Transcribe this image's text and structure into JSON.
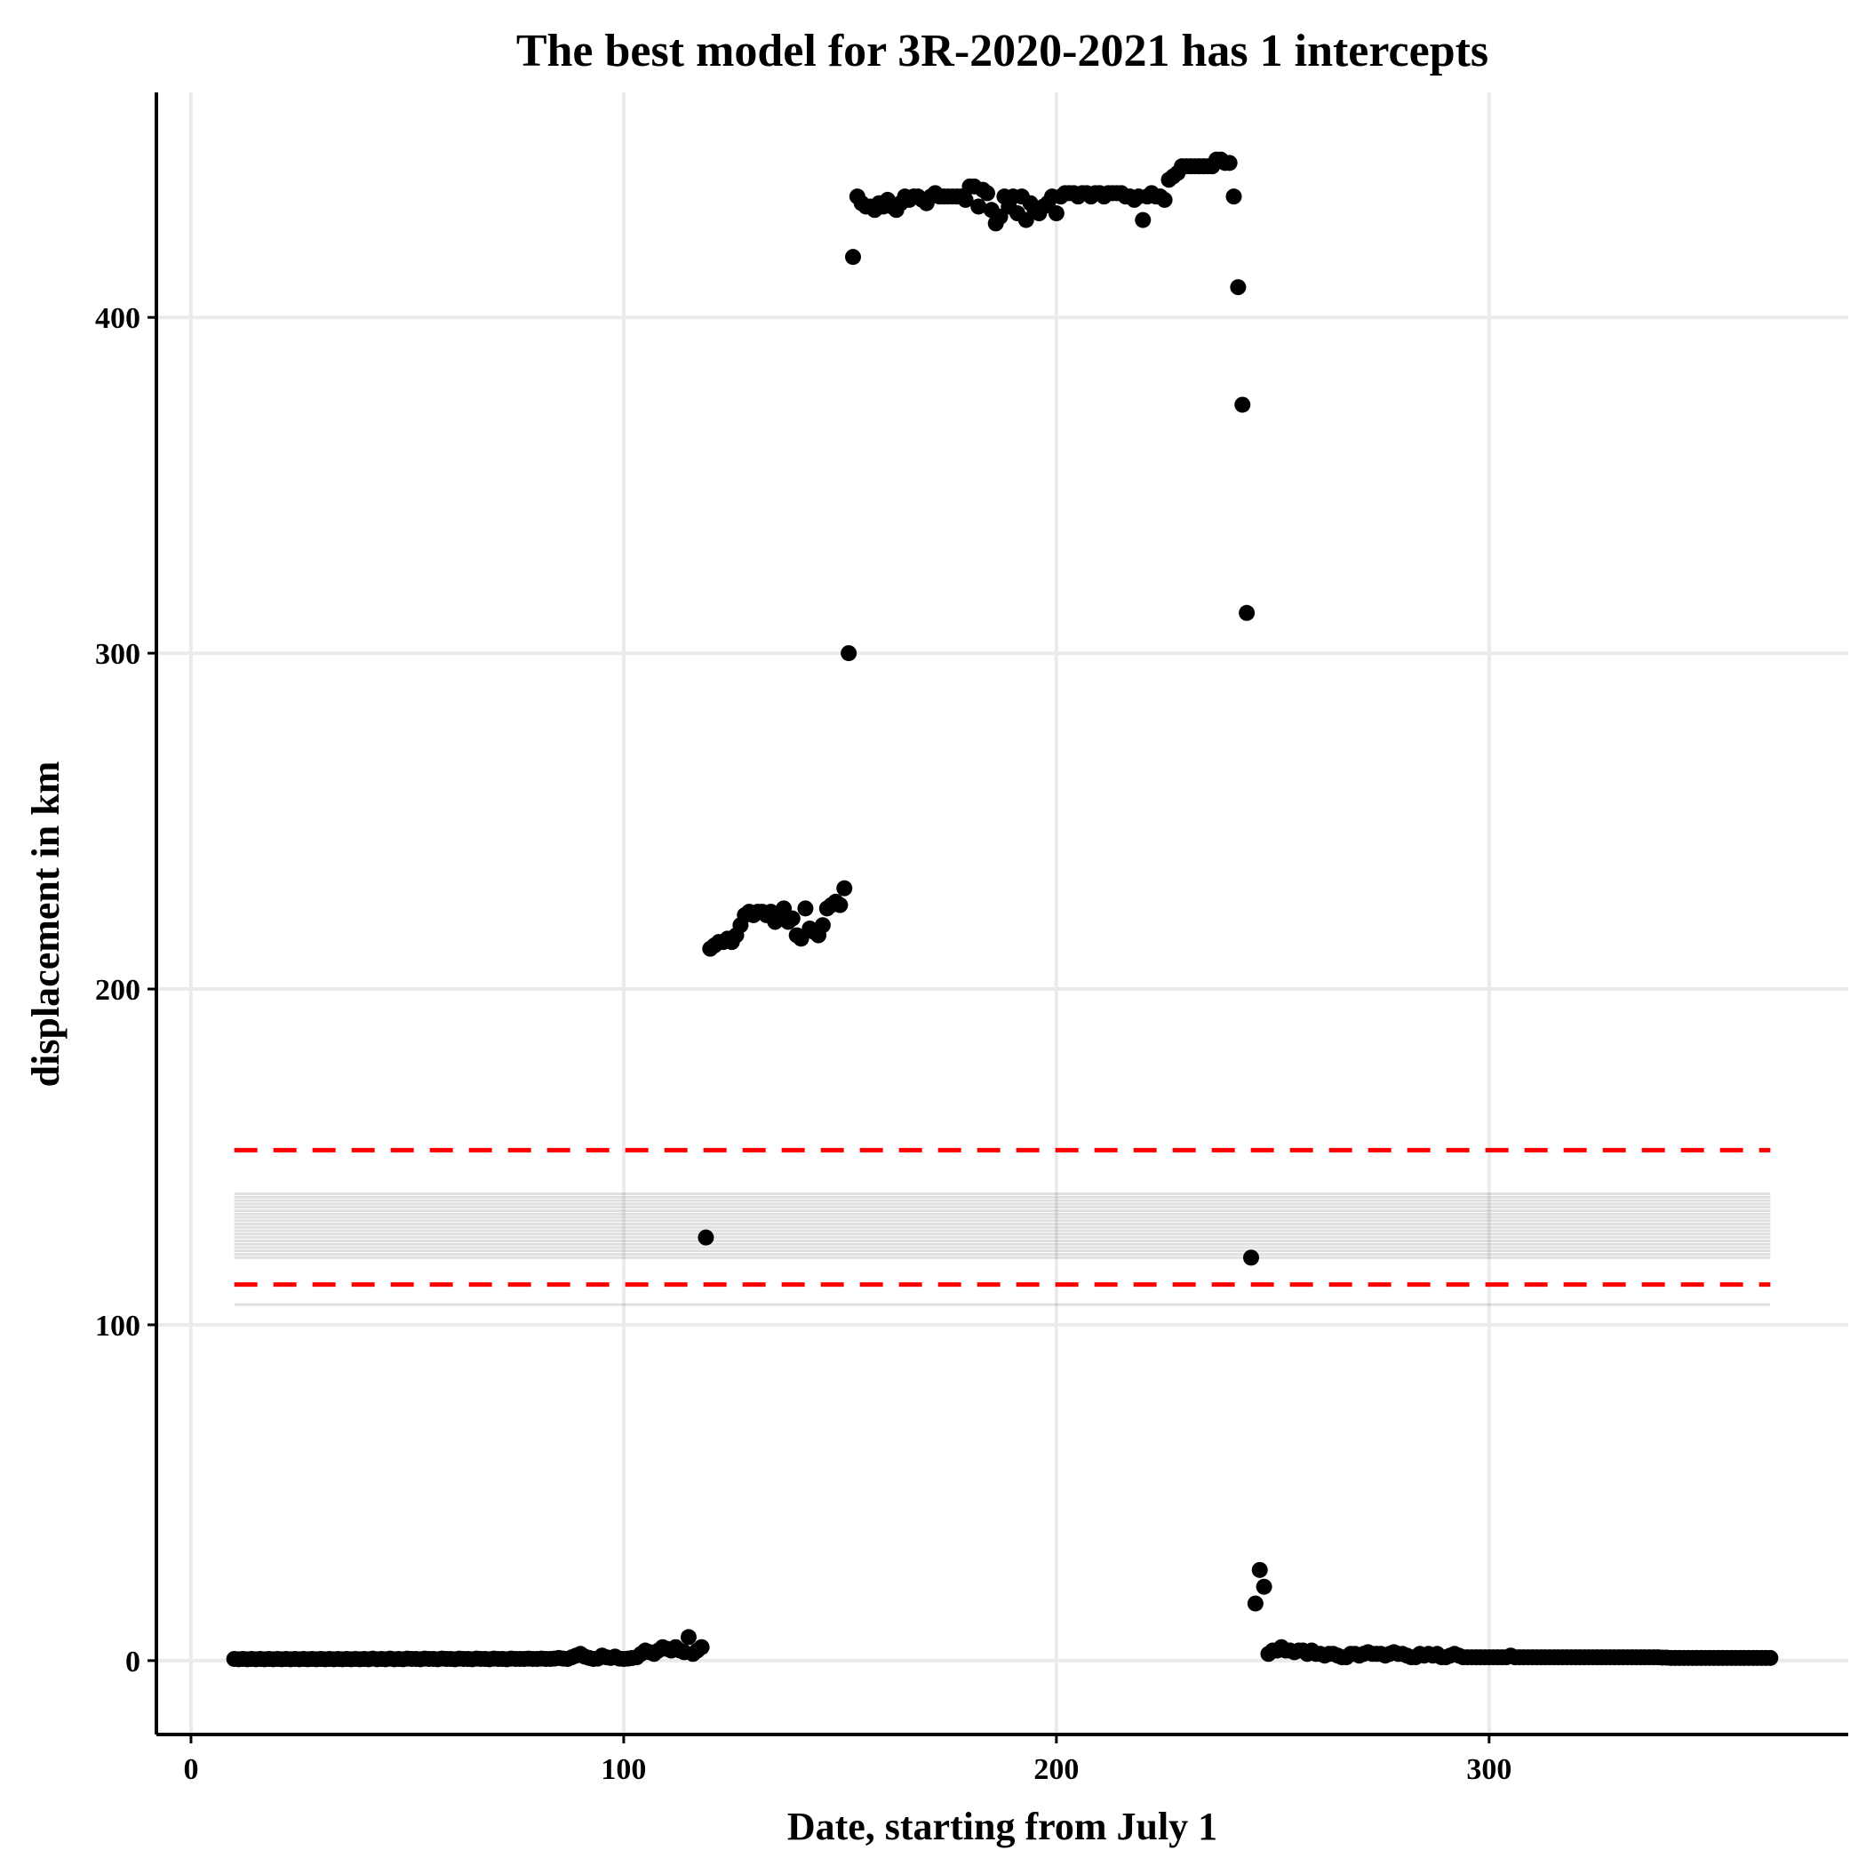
{
  "chart_data": {
    "type": "scatter",
    "title": "The best model for 3R-2020-2021 has 1 intercepts",
    "xlabel": "Date, starting from July 1",
    "ylabel": "displacement in km",
    "xlim": [
      -8,
      383
    ],
    "ylim": [
      -22,
      467
    ],
    "x_ticks": [
      0,
      100,
      200,
      300
    ],
    "y_ticks": [
      0,
      100,
      200,
      300,
      400
    ],
    "grid": true,
    "colors": {
      "points": "#000000",
      "bounds": "#ff0000",
      "band": "#000000"
    },
    "intercept_lines": [
      106,
      120,
      121,
      122,
      123,
      124,
      125,
      126,
      127,
      128,
      129,
      130,
      131,
      132,
      133,
      134,
      135,
      136,
      137,
      138,
      139
    ],
    "line_x_range": [
      10,
      365
    ],
    "bounds": [
      {
        "name": "upper",
        "y": 152
      },
      {
        "name": "lower",
        "y": 112
      }
    ],
    "points": [
      [
        10,
        0.5
      ],
      [
        11,
        0.4
      ],
      [
        12,
        0.5
      ],
      [
        13,
        0.4
      ],
      [
        14,
        0.5
      ],
      [
        15,
        0.4
      ],
      [
        16,
        0.5
      ],
      [
        17,
        0.4
      ],
      [
        18,
        0.5
      ],
      [
        19,
        0.4
      ],
      [
        20,
        0.5
      ],
      [
        21,
        0.4
      ],
      [
        22,
        0.5
      ],
      [
        23,
        0.4
      ],
      [
        24,
        0.5
      ],
      [
        25,
        0.4
      ],
      [
        26,
        0.5
      ],
      [
        27,
        0.4
      ],
      [
        28,
        0.5
      ],
      [
        29,
        0.4
      ],
      [
        30,
        0.5
      ],
      [
        31,
        0.4
      ],
      [
        32,
        0.5
      ],
      [
        33,
        0.4
      ],
      [
        34,
        0.5
      ],
      [
        35,
        0.4
      ],
      [
        36,
        0.5
      ],
      [
        37,
        0.4
      ],
      [
        38,
        0.5
      ],
      [
        39,
        0.4
      ],
      [
        40,
        0.5
      ],
      [
        41,
        0.4
      ],
      [
        42,
        0.6
      ],
      [
        43,
        0.4
      ],
      [
        44,
        0.5
      ],
      [
        45,
        0.4
      ],
      [
        46,
        0.6
      ],
      [
        47,
        0.4
      ],
      [
        48,
        0.5
      ],
      [
        49,
        0.4
      ],
      [
        50,
        0.6
      ],
      [
        51,
        0.5
      ],
      [
        52,
        0.5
      ],
      [
        53,
        0.4
      ],
      [
        54,
        0.6
      ],
      [
        55,
        0.5
      ],
      [
        56,
        0.5
      ],
      [
        57,
        0.4
      ],
      [
        58,
        0.6
      ],
      [
        59,
        0.5
      ],
      [
        60,
        0.5
      ],
      [
        61,
        0.4
      ],
      [
        62,
        0.6
      ],
      [
        63,
        0.5
      ],
      [
        64,
        0.5
      ],
      [
        65,
        0.4
      ],
      [
        66,
        0.6
      ],
      [
        67,
        0.5
      ],
      [
        68,
        0.5
      ],
      [
        69,
        0.4
      ],
      [
        70,
        0.6
      ],
      [
        71,
        0.5
      ],
      [
        72,
        0.5
      ],
      [
        73,
        0.4
      ],
      [
        74,
        0.6
      ],
      [
        75,
        0.5
      ],
      [
        76,
        0.5
      ],
      [
        77,
        0.5
      ],
      [
        78,
        0.6
      ],
      [
        79,
        0.5
      ],
      [
        80,
        0.5
      ],
      [
        81,
        0.6
      ],
      [
        82,
        0.5
      ],
      [
        83,
        0.5
      ],
      [
        84,
        0.6
      ],
      [
        85,
        0.8
      ],
      [
        86,
        0.6
      ],
      [
        87,
        0.5
      ],
      [
        88,
        1.0
      ],
      [
        89,
        1.5
      ],
      [
        90,
        2.0
      ],
      [
        91,
        1.2
      ],
      [
        92,
        0.8
      ],
      [
        93,
        0.5
      ],
      [
        94,
        0.6
      ],
      [
        95,
        1.5
      ],
      [
        96,
        1.0
      ],
      [
        97,
        0.8
      ],
      [
        98,
        1.2
      ],
      [
        99,
        0.6
      ],
      [
        100,
        0.5
      ],
      [
        101,
        0.6
      ],
      [
        102,
        0.8
      ],
      [
        103,
        1.0
      ],
      [
        104,
        2.0
      ],
      [
        105,
        3.0
      ],
      [
        106,
        2.5
      ],
      [
        107,
        2.0
      ],
      [
        108,
        3.0
      ],
      [
        109,
        4.0
      ],
      [
        110,
        3.5
      ],
      [
        111,
        3.0
      ],
      [
        112,
        4.0
      ],
      [
        113,
        3.0
      ],
      [
        114,
        2.5
      ],
      [
        115,
        7.0
      ],
      [
        116,
        2.0
      ],
      [
        117,
        3.0
      ],
      [
        118,
        4.0
      ],
      [
        119,
        126
      ],
      [
        120,
        212
      ],
      [
        121,
        213
      ],
      [
        122,
        214
      ],
      [
        123,
        214
      ],
      [
        124,
        215
      ],
      [
        125,
        214
      ],
      [
        126,
        216
      ],
      [
        127,
        219
      ],
      [
        128,
        222
      ],
      [
        129,
        223
      ],
      [
        130,
        222
      ],
      [
        131,
        223
      ],
      [
        132,
        223
      ],
      [
        133,
        222
      ],
      [
        134,
        223
      ],
      [
        135,
        220
      ],
      [
        136,
        222
      ],
      [
        137,
        224
      ],
      [
        138,
        220
      ],
      [
        139,
        221
      ],
      [
        140,
        216
      ],
      [
        141,
        215
      ],
      [
        142,
        224
      ],
      [
        143,
        218
      ],
      [
        144,
        217
      ],
      [
        145,
        216
      ],
      [
        146,
        219
      ],
      [
        147,
        224
      ],
      [
        148,
        225
      ],
      [
        149,
        226
      ],
      [
        150,
        225
      ],
      [
        151,
        230
      ],
      [
        152,
        300
      ],
      [
        153,
        418
      ],
      [
        154,
        436
      ],
      [
        155,
        434
      ],
      [
        156,
        433
      ],
      [
        157,
        433
      ],
      [
        158,
        432
      ],
      [
        159,
        434
      ],
      [
        160,
        433
      ],
      [
        161,
        435
      ],
      [
        162,
        433
      ],
      [
        163,
        432
      ],
      [
        164,
        434
      ],
      [
        165,
        436
      ],
      [
        166,
        435
      ],
      [
        167,
        436
      ],
      [
        168,
        436
      ],
      [
        169,
        435
      ],
      [
        170,
        434
      ],
      [
        171,
        436
      ],
      [
        172,
        437
      ],
      [
        173,
        436
      ],
      [
        174,
        436
      ],
      [
        175,
        436
      ],
      [
        176,
        436
      ],
      [
        177,
        436
      ],
      [
        178,
        436
      ],
      [
        179,
        435
      ],
      [
        180,
        439
      ],
      [
        181,
        439
      ],
      [
        182,
        433
      ],
      [
        183,
        438
      ],
      [
        184,
        437
      ],
      [
        185,
        432
      ],
      [
        186,
        428
      ],
      [
        187,
        430
      ],
      [
        188,
        436
      ],
      [
        189,
        433
      ],
      [
        190,
        436
      ],
      [
        191,
        431
      ],
      [
        192,
        436
      ],
      [
        193,
        429
      ],
      [
        194,
        434
      ],
      [
        195,
        432
      ],
      [
        196,
        431
      ],
      [
        197,
        433
      ],
      [
        198,
        434
      ],
      [
        199,
        436
      ],
      [
        200,
        431
      ],
      [
        201,
        436
      ],
      [
        202,
        437
      ],
      [
        203,
        437
      ],
      [
        204,
        437
      ],
      [
        205,
        436
      ],
      [
        206,
        437
      ],
      [
        207,
        437
      ],
      [
        208,
        436
      ],
      [
        209,
        437
      ],
      [
        210,
        437
      ],
      [
        211,
        436
      ],
      [
        212,
        437
      ],
      [
        213,
        437
      ],
      [
        214,
        437
      ],
      [
        215,
        437
      ],
      [
        216,
        436
      ],
      [
        217,
        436
      ],
      [
        218,
        435
      ],
      [
        219,
        436
      ],
      [
        220,
        429
      ],
      [
        221,
        436
      ],
      [
        222,
        437
      ],
      [
        223,
        436
      ],
      [
        224,
        436
      ],
      [
        225,
        435
      ],
      [
        226,
        441
      ],
      [
        227,
        442
      ],
      [
        228,
        443
      ],
      [
        229,
        445
      ],
      [
        230,
        445
      ],
      [
        231,
        445
      ],
      [
        232,
        445
      ],
      [
        233,
        445
      ],
      [
        234,
        445
      ],
      [
        235,
        445
      ],
      [
        236,
        445
      ],
      [
        237,
        447
      ],
      [
        238,
        447
      ],
      [
        239,
        446
      ],
      [
        240,
        446
      ],
      [
        241,
        436
      ],
      [
        242,
        409
      ],
      [
        243,
        374
      ],
      [
        244,
        312
      ],
      [
        245,
        120
      ],
      [
        246,
        17
      ],
      [
        247,
        27
      ],
      [
        248,
        22
      ],
      [
        249,
        2.0
      ],
      [
        250,
        3.0
      ],
      [
        251,
        3.0
      ],
      [
        252,
        4.0
      ],
      [
        253,
        3.0
      ],
      [
        254,
        3.0
      ],
      [
        255,
        2.5
      ],
      [
        256,
        3.0
      ],
      [
        257,
        3.0
      ],
      [
        258,
        2.0
      ],
      [
        259,
        3.0
      ],
      [
        260,
        2.0
      ],
      [
        261,
        2.0
      ],
      [
        262,
        1.5
      ],
      [
        263,
        2.0
      ],
      [
        264,
        2.0
      ],
      [
        265,
        1.5
      ],
      [
        266,
        1.0
      ],
      [
        267,
        1.0
      ],
      [
        268,
        2.0
      ],
      [
        269,
        2.0
      ],
      [
        270,
        1.5
      ],
      [
        271,
        2.0
      ],
      [
        272,
        2.5
      ],
      [
        273,
        2.0
      ],
      [
        274,
        2.0
      ],
      [
        275,
        2.0
      ],
      [
        276,
        1.5
      ],
      [
        277,
        2.0
      ],
      [
        278,
        2.5
      ],
      [
        279,
        2.0
      ],
      [
        280,
        2.0
      ],
      [
        281,
        1.5
      ],
      [
        282,
        1.0
      ],
      [
        283,
        1.0
      ],
      [
        284,
        2.0
      ],
      [
        285,
        1.5
      ],
      [
        286,
        2.0
      ],
      [
        287,
        1.5
      ],
      [
        288,
        2.0
      ],
      [
        289,
        1.0
      ],
      [
        290,
        1.0
      ],
      [
        291,
        1.5
      ],
      [
        292,
        2.0
      ],
      [
        293,
        1.5
      ],
      [
        294,
        1.0
      ],
      [
        295,
        1.0
      ],
      [
        296,
        1.0
      ],
      [
        297,
        1.0
      ],
      [
        298,
        1.0
      ],
      [
        299,
        1.0
      ],
      [
        300,
        1.0
      ],
      [
        301,
        1.0
      ],
      [
        302,
        1.0
      ],
      [
        303,
        1.0
      ],
      [
        304,
        1.0
      ],
      [
        305,
        1.5
      ],
      [
        306,
        1.0
      ],
      [
        307,
        1.0
      ],
      [
        308,
        1.0
      ],
      [
        309,
        1.0
      ],
      [
        310,
        1.0
      ],
      [
        311,
        1.0
      ],
      [
        312,
        1.0
      ],
      [
        313,
        1.0
      ],
      [
        314,
        1.0
      ],
      [
        315,
        1.0
      ],
      [
        316,
        1.0
      ],
      [
        317,
        1.0
      ],
      [
        318,
        1.0
      ],
      [
        319,
        1.0
      ],
      [
        320,
        1.0
      ],
      [
        321,
        1.0
      ],
      [
        322,
        1.0
      ],
      [
        323,
        1.0
      ],
      [
        324,
        1.0
      ],
      [
        325,
        1.0
      ],
      [
        326,
        1.0
      ],
      [
        327,
        1.0
      ],
      [
        328,
        1.0
      ],
      [
        329,
        1.0
      ],
      [
        330,
        1.0
      ],
      [
        331,
        1.0
      ],
      [
        332,
        1.0
      ],
      [
        333,
        1.0
      ],
      [
        334,
        1.0
      ],
      [
        335,
        1.0
      ],
      [
        336,
        1.0
      ],
      [
        337,
        1.0
      ],
      [
        338,
        1.0
      ],
      [
        339,
        1.0
      ],
      [
        340,
        0.9
      ],
      [
        341,
        0.9
      ],
      [
        342,
        0.8
      ],
      [
        343,
        0.8
      ],
      [
        344,
        0.8
      ],
      [
        345,
        0.8
      ],
      [
        346,
        0.8
      ],
      [
        347,
        0.8
      ],
      [
        348,
        0.8
      ],
      [
        349,
        0.8
      ],
      [
        350,
        0.8
      ],
      [
        351,
        0.8
      ],
      [
        352,
        0.8
      ],
      [
        353,
        0.8
      ],
      [
        354,
        0.8
      ],
      [
        355,
        0.8
      ],
      [
        356,
        0.8
      ],
      [
        357,
        0.8
      ],
      [
        358,
        0.8
      ],
      [
        359,
        0.8
      ],
      [
        360,
        0.8
      ],
      [
        361,
        0.8
      ],
      [
        362,
        0.8
      ],
      [
        363,
        0.8
      ],
      [
        364,
        0.8
      ],
      [
        365,
        0.8
      ]
    ]
  }
}
